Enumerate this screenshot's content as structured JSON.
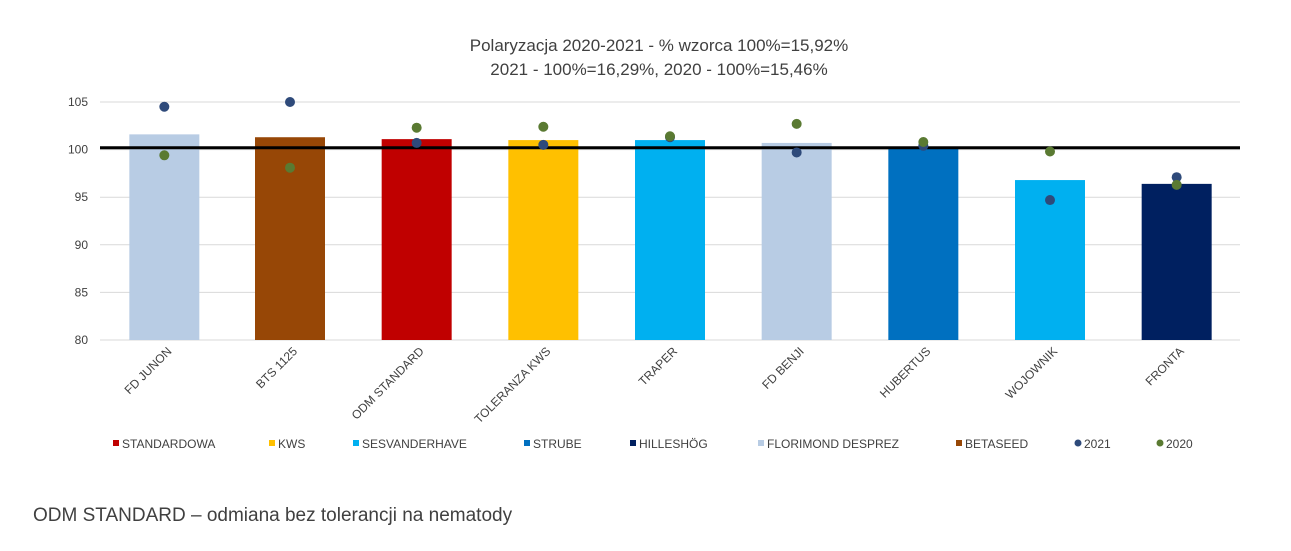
{
  "chart_data": {
    "type": "bar",
    "title_lines": [
      "Polaryzacja 2020-2021 - % wzorca 100%=15,92%",
      "2021 - 100%=16,29%, 2020 - 100%=15,46%"
    ],
    "ylim": [
      80,
      105
    ],
    "yticks": [
      80,
      85,
      90,
      95,
      100,
      105
    ],
    "grid": true,
    "reference_line": 100.2,
    "categories": [
      "FD JUNON",
      "BTS 1125",
      "ODM STANDARD",
      "TOLERANZA KWS",
      "TRAPER",
      "FD BENJI",
      "HUBERTUS",
      "WOJOWNIK",
      "FRONTA"
    ],
    "bars": [
      {
        "value": 101.6,
        "group": "FLORIMOND DESPREZ"
      },
      {
        "value": 101.3,
        "group": "BETASEED"
      },
      {
        "value": 101.1,
        "group": "STANDARDOWA"
      },
      {
        "value": 101.0,
        "group": "KWS"
      },
      {
        "value": 101.0,
        "group": "SESVANDERHAVE"
      },
      {
        "value": 100.7,
        "group": "FLORIMOND DESPREZ"
      },
      {
        "value": 100.3,
        "group": "STRUBE"
      },
      {
        "value": 96.8,
        "group": "SESVANDERHAVE"
      },
      {
        "value": 96.4,
        "group": "HILLESHÖG"
      }
    ],
    "series": [
      {
        "name": "2021",
        "color": "#2e4a7a",
        "values": [
          104.5,
          105.0,
          100.7,
          100.5,
          101.3,
          99.7,
          100.4,
          94.7,
          97.1
        ]
      },
      {
        "name": "2020",
        "color": "#5a7a32",
        "values": [
          99.4,
          98.1,
          102.3,
          102.4,
          101.4,
          102.7,
          100.8,
          99.8,
          96.3
        ]
      }
    ],
    "legend": [
      {
        "label": "STANDARDOWA",
        "color": "#c00000",
        "shape": "square"
      },
      {
        "label": "KWS",
        "color": "#ffc000",
        "shape": "square"
      },
      {
        "label": "SESVANDERHAVE",
        "color": "#00b0f0",
        "shape": "square"
      },
      {
        "label": "STRUBE",
        "color": "#0070c0",
        "shape": "square"
      },
      {
        "label": "HILLESHÖG",
        "color": "#002060",
        "shape": "square"
      },
      {
        "label": "FLORIMOND DESPREZ",
        "color": "#b8cce4",
        "shape": "square"
      },
      {
        "label": "BETASEED",
        "color": "#974706",
        "shape": "square"
      },
      {
        "label": "2021",
        "color": "#2e4a7a",
        "shape": "circle"
      },
      {
        "label": "2020",
        "color": "#5a7a32",
        "shape": "circle"
      }
    ],
    "legend_position": "bottom"
  },
  "footnote": "ODM STANDARD – odmiana bez tolerancji na nematody"
}
